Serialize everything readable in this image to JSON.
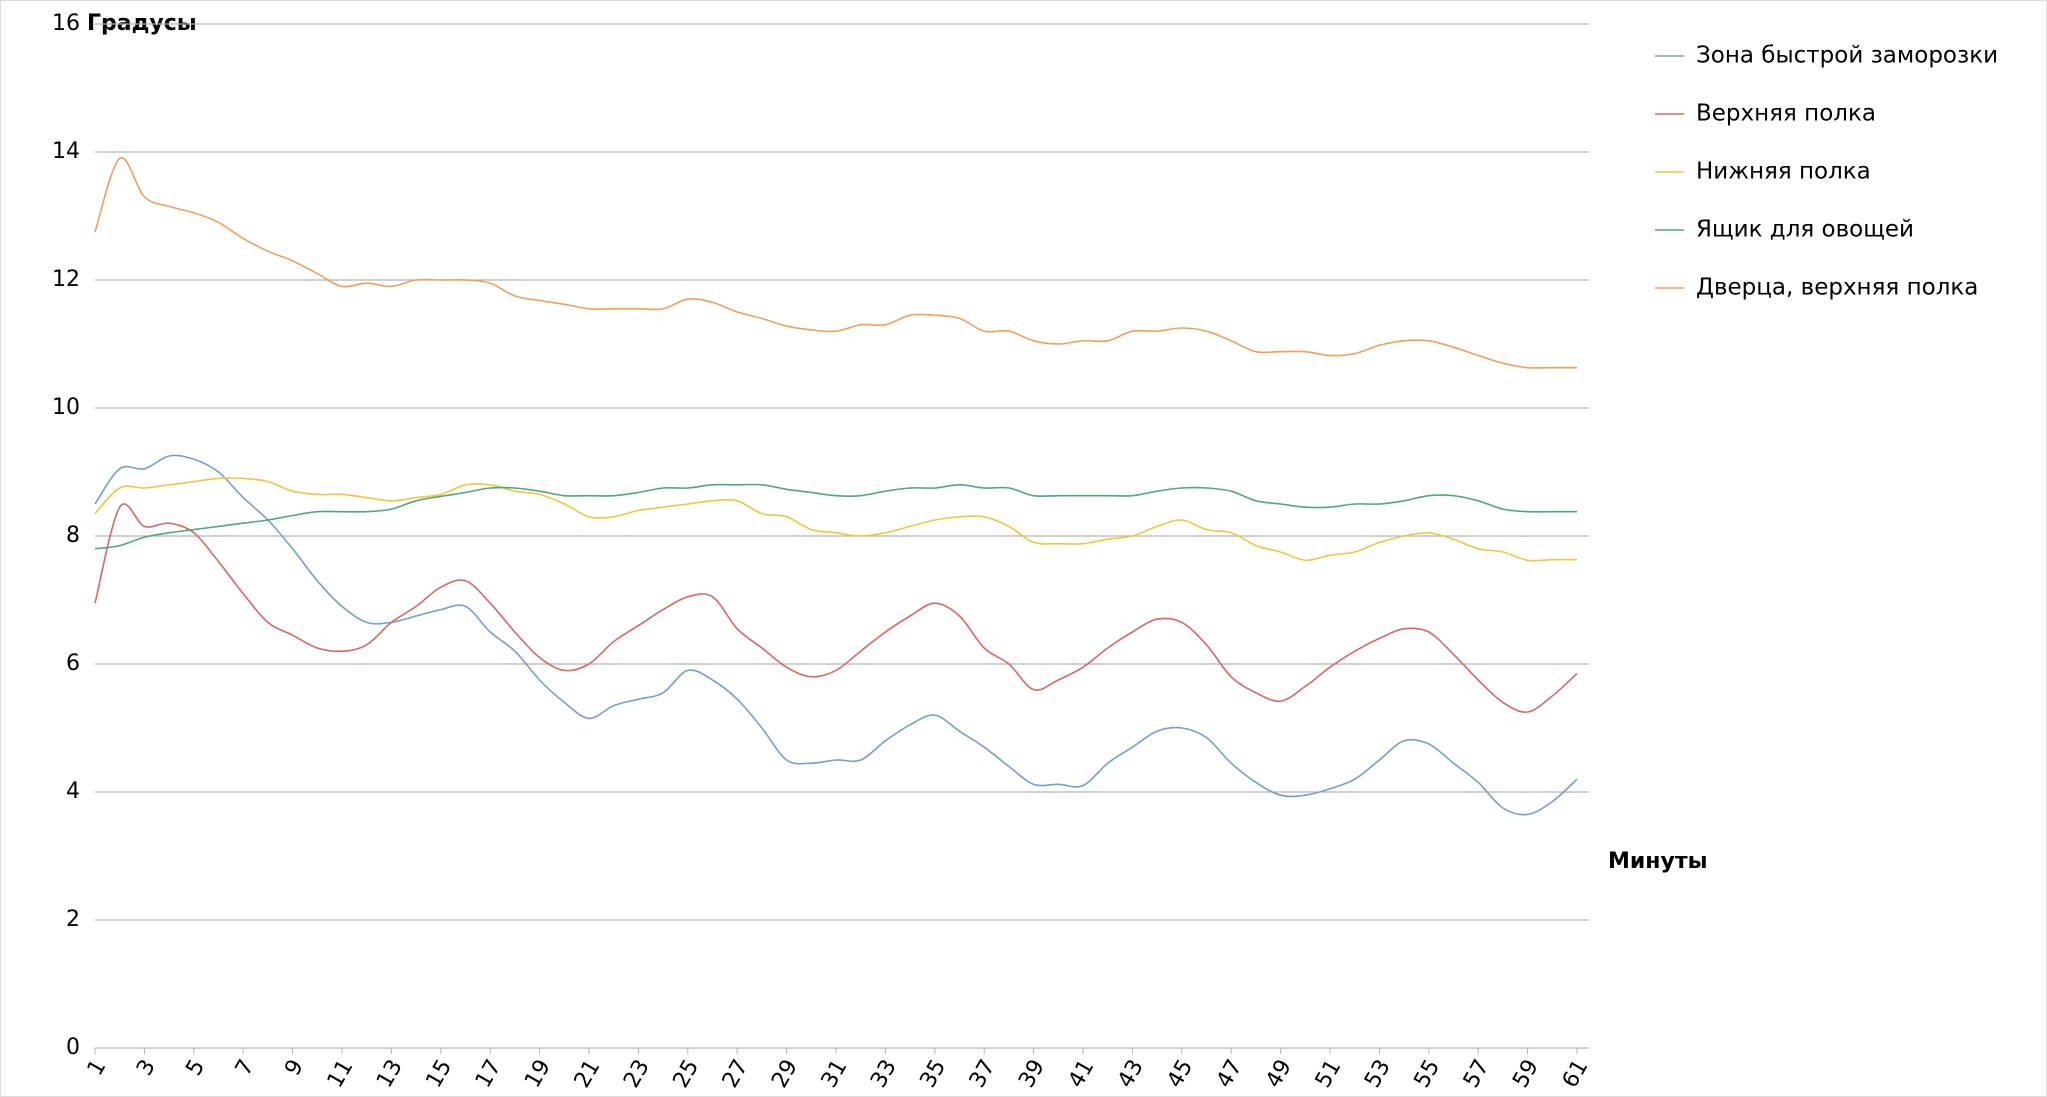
{
  "chart_data": {
    "type": "line",
    "y_label": "Градусы",
    "x_label": "Минуты",
    "x": [
      1,
      2,
      3,
      4,
      5,
      6,
      7,
      8,
      9,
      10,
      11,
      12,
      13,
      14,
      15,
      16,
      17,
      18,
      19,
      20,
      21,
      22,
      23,
      24,
      25,
      26,
      27,
      28,
      29,
      30,
      31,
      32,
      33,
      34,
      35,
      36,
      37,
      38,
      39,
      40,
      41,
      42,
      43,
      44,
      45,
      46,
      47,
      48,
      49,
      50,
      51,
      52,
      53,
      54,
      55,
      56,
      57,
      58,
      59,
      60,
      61
    ],
    "xlim": [
      1,
      61
    ],
    "xticks": [
      1,
      3,
      5,
      7,
      9,
      11,
      13,
      15,
      17,
      19,
      21,
      23,
      25,
      27,
      29,
      31,
      33,
      35,
      37,
      39,
      41,
      43,
      45,
      47,
      49,
      51,
      53,
      55,
      57,
      59,
      61
    ],
    "ylim": [
      0,
      16
    ],
    "yticks": [
      0,
      2,
      4,
      6,
      8,
      10,
      12,
      14,
      16
    ],
    "grid": true,
    "legend": "right",
    "smooth": true,
    "series": [
      {
        "name": "Зона быстрой заморозки",
        "color": "#729fcf",
        "values": [
          8.5,
          9.05,
          9.05,
          9.25,
          9.2,
          9.0,
          8.6,
          8.25,
          7.8,
          7.3,
          6.9,
          6.65,
          6.65,
          6.75,
          6.85,
          6.9,
          6.5,
          6.2,
          5.75,
          5.4,
          5.15,
          5.35,
          5.45,
          5.55,
          5.9,
          5.75,
          5.45,
          5.0,
          4.5,
          4.45,
          4.5,
          4.5,
          4.8,
          5.05,
          5.2,
          4.95,
          4.7,
          4.4,
          4.12,
          4.12,
          4.1,
          4.45,
          4.7,
          4.95,
          5.0,
          4.85,
          4.45,
          4.15,
          3.95,
          3.95,
          4.05,
          4.2,
          4.5,
          4.8,
          4.75,
          4.45,
          4.15,
          3.75,
          3.65,
          3.85,
          4.2
        ]
      },
      {
        "name": "Верхняя полка",
        "color": "#d9675f",
        "values": [
          6.95,
          8.45,
          8.15,
          8.2,
          8.05,
          7.6,
          7.1,
          6.65,
          6.45,
          6.25,
          6.2,
          6.3,
          6.65,
          6.9,
          7.2,
          7.3,
          6.95,
          6.5,
          6.1,
          5.9,
          6.0,
          6.35,
          6.6,
          6.85,
          7.05,
          7.05,
          6.55,
          6.25,
          5.95,
          5.8,
          5.9,
          6.2,
          6.5,
          6.75,
          6.95,
          6.75,
          6.25,
          6.0,
          5.6,
          5.75,
          5.95,
          6.25,
          6.5,
          6.7,
          6.65,
          6.3,
          5.8,
          5.55,
          5.42,
          5.65,
          5.95,
          6.2,
          6.4,
          6.55,
          6.5,
          6.15,
          5.75,
          5.4,
          5.25,
          5.5,
          5.85
        ]
      },
      {
        "name": "Нижняя полка",
        "color": "#f2c53d",
        "values": [
          8.35,
          8.75,
          8.75,
          8.8,
          8.85,
          8.9,
          8.9,
          8.85,
          8.7,
          8.65,
          8.65,
          8.6,
          8.55,
          8.6,
          8.65,
          8.8,
          8.8,
          8.7,
          8.65,
          8.5,
          8.3,
          8.3,
          8.4,
          8.45,
          8.5,
          8.55,
          8.55,
          8.35,
          8.3,
          8.1,
          8.05,
          8.0,
          8.05,
          8.15,
          8.25,
          8.3,
          8.3,
          8.15,
          7.9,
          7.88,
          7.88,
          7.95,
          8.0,
          8.15,
          8.25,
          8.1,
          8.05,
          7.85,
          7.75,
          7.62,
          7.7,
          7.75,
          7.9,
          8.0,
          8.05,
          7.95,
          7.8,
          7.75,
          7.62,
          7.63,
          7.63
        ]
      },
      {
        "name": "Ящик для овощей",
        "color": "#4ea97a",
        "values": [
          7.8,
          7.85,
          7.98,
          8.05,
          8.1,
          8.15,
          8.2,
          8.25,
          8.32,
          8.38,
          8.38,
          8.38,
          8.42,
          8.55,
          8.62,
          8.68,
          8.75,
          8.75,
          8.7,
          8.63,
          8.63,
          8.63,
          8.68,
          8.75,
          8.75,
          8.8,
          8.8,
          8.8,
          8.73,
          8.68,
          8.63,
          8.63,
          8.7,
          8.75,
          8.75,
          8.8,
          8.75,
          8.75,
          8.63,
          8.63,
          8.63,
          8.63,
          8.63,
          8.7,
          8.75,
          8.75,
          8.7,
          8.55,
          8.5,
          8.45,
          8.45,
          8.5,
          8.5,
          8.55,
          8.63,
          8.63,
          8.55,
          8.42,
          8.38,
          8.38,
          8.38
        ]
      },
      {
        "name": "Дверца, верхняя полка",
        "color": "#f0a059",
        "values": [
          12.75,
          13.9,
          13.3,
          13.15,
          13.05,
          12.9,
          12.65,
          12.45,
          12.3,
          12.1,
          11.9,
          11.95,
          11.9,
          12.0,
          12.0,
          12.0,
          11.95,
          11.75,
          11.68,
          11.62,
          11.55,
          11.55,
          11.55,
          11.55,
          11.7,
          11.65,
          11.5,
          11.4,
          11.28,
          11.22,
          11.2,
          11.3,
          11.3,
          11.45,
          11.45,
          11.4,
          11.2,
          11.2,
          11.05,
          11.0,
          11.05,
          11.05,
          11.2,
          11.2,
          11.25,
          11.2,
          11.05,
          10.88,
          10.88,
          10.88,
          10.82,
          10.85,
          10.98,
          11.05,
          11.05,
          10.95,
          10.82,
          10.7,
          10.63,
          10.63,
          10.63
        ]
      }
    ]
  }
}
